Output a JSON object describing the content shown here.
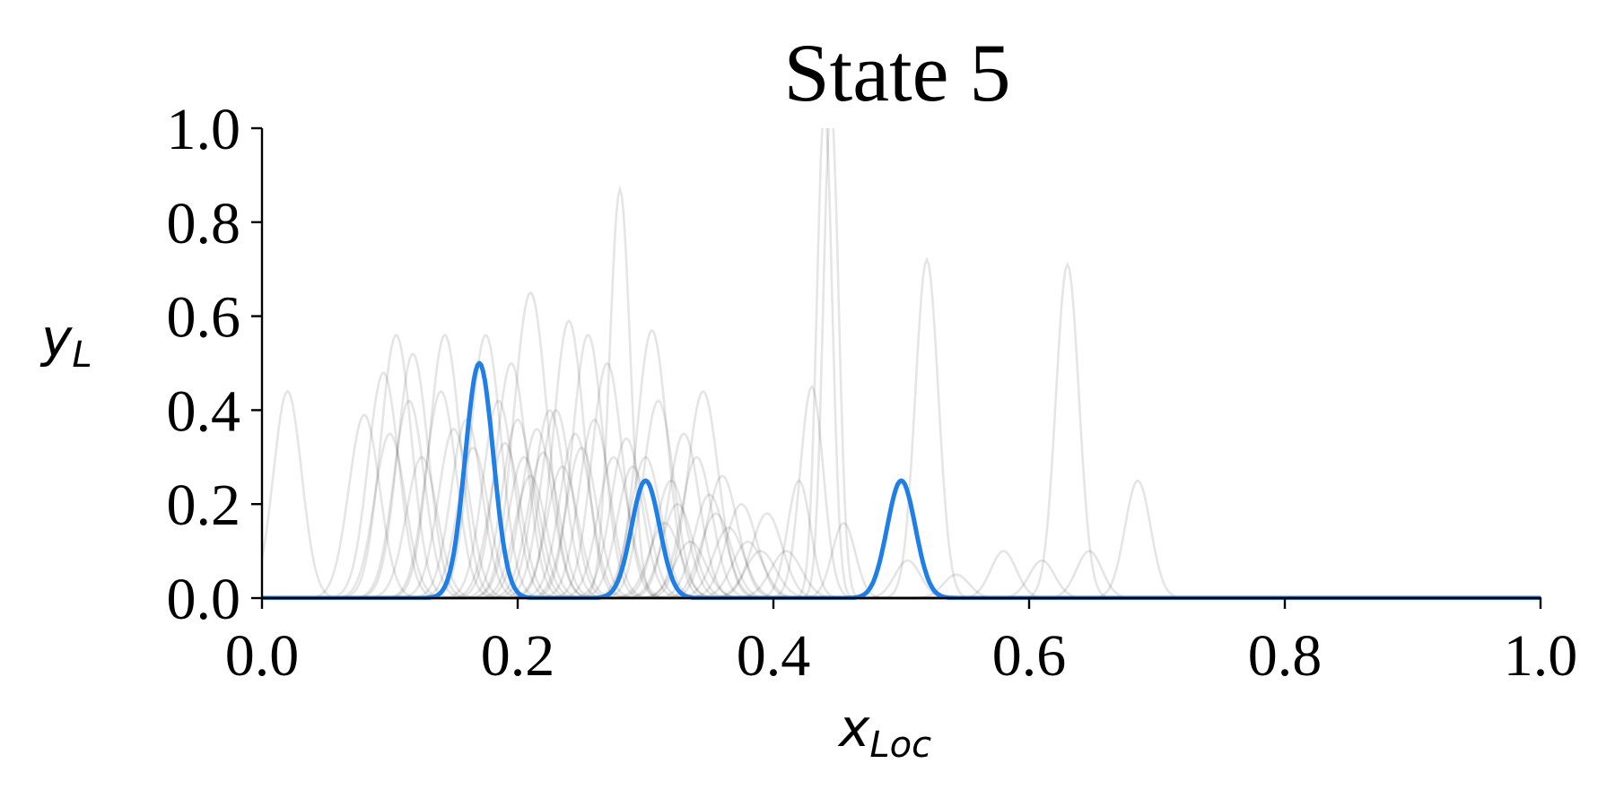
{
  "chart_data": {
    "type": "line",
    "title": "State 5",
    "xlabel": {
      "main": "x",
      "sub": "Loc"
    },
    "ylabel": {
      "main": "y",
      "sub": "L"
    },
    "xlim": [
      0,
      1
    ],
    "ylim": [
      0,
      1
    ],
    "x_ticks": [
      "0.0",
      "0.2",
      "0.4",
      "0.6",
      "0.8",
      "1.0"
    ],
    "y_ticks": [
      "0.0",
      "0.2",
      "0.4",
      "0.6",
      "0.8",
      "1.0"
    ],
    "grid": false,
    "legend": "none",
    "colors": {
      "highlight": "#1f7fe6",
      "background_curves": "#000000",
      "axes": "#000000"
    },
    "highlight_series": {
      "peaks": [
        {
          "mu": 0.17,
          "height": 0.5,
          "sigma": 0.011
        },
        {
          "mu": 0.3,
          "height": 0.25,
          "sigma": 0.011
        },
        {
          "mu": 0.5,
          "height": 0.25,
          "sigma": 0.011
        }
      ]
    },
    "background_series": [
      {
        "peaks": [
          {
            "mu": 0.02,
            "height": 0.44,
            "sigma": 0.011
          },
          {
            "mu": 0.28,
            "height": 0.87,
            "sigma": 0.008
          }
        ]
      },
      {
        "peaks": [
          {
            "mu": 0.105,
            "height": 0.56,
            "sigma": 0.012
          },
          {
            "mu": 0.44,
            "height": 1.05,
            "sigma": 0.006
          }
        ]
      },
      {
        "peaks": [
          {
            "mu": 0.118,
            "height": 0.52,
            "sigma": 0.012
          },
          {
            "mu": 0.445,
            "height": 1.05,
            "sigma": 0.006
          }
        ]
      },
      {
        "peaks": [
          {
            "mu": 0.143,
            "height": 0.56,
            "sigma": 0.012
          },
          {
            "mu": 0.52,
            "height": 0.72,
            "sigma": 0.009
          }
        ]
      },
      {
        "peaks": [
          {
            "mu": 0.21,
            "height": 0.65,
            "sigma": 0.013
          },
          {
            "mu": 0.63,
            "height": 0.71,
            "sigma": 0.009
          }
        ]
      },
      {
        "peaks": [
          {
            "mu": 0.24,
            "height": 0.59,
            "sigma": 0.012
          },
          {
            "mu": 0.685,
            "height": 0.25,
            "sigma": 0.01
          }
        ]
      },
      {
        "peaks": [
          {
            "mu": 0.305,
            "height": 0.57,
            "sigma": 0.012
          },
          {
            "mu": 0.43,
            "height": 0.45,
            "sigma": 0.009
          }
        ]
      },
      {
        "peaks": [
          {
            "mu": 0.08,
            "height": 0.39,
            "sigma": 0.012
          },
          {
            "mu": 0.42,
            "height": 0.25,
            "sigma": 0.009
          }
        ]
      },
      {
        "peaks": [
          {
            "mu": 0.095,
            "height": 0.48,
            "sigma": 0.012
          },
          {
            "mu": 0.58,
            "height": 0.1,
            "sigma": 0.01
          }
        ]
      },
      {
        "peaks": [
          {
            "mu": 0.175,
            "height": 0.56,
            "sigma": 0.012
          },
          {
            "mu": 0.647,
            "height": 0.1,
            "sigma": 0.01
          }
        ]
      },
      {
        "peaks": [
          {
            "mu": 0.195,
            "height": 0.5,
            "sigma": 0.012
          },
          {
            "mu": 0.61,
            "height": 0.08,
            "sigma": 0.01
          }
        ]
      },
      {
        "peaks": [
          {
            "mu": 0.255,
            "height": 0.56,
            "sigma": 0.012
          },
          {
            "mu": 0.455,
            "height": 0.16,
            "sigma": 0.009
          }
        ]
      },
      {
        "peaks": [
          {
            "mu": 0.27,
            "height": 0.5,
            "sigma": 0.012
          },
          {
            "mu": 0.543,
            "height": 0.05,
            "sigma": 0.01
          }
        ]
      },
      {
        "peaks": [
          {
            "mu": 0.345,
            "height": 0.44,
            "sigma": 0.012
          },
          {
            "mu": 0.505,
            "height": 0.08,
            "sigma": 0.01
          }
        ]
      },
      {
        "peaks": [
          {
            "mu": 0.14,
            "height": 0.44,
            "sigma": 0.012
          },
          {
            "mu": 0.36,
            "height": 0.26,
            "sigma": 0.012
          }
        ]
      },
      {
        "peaks": [
          {
            "mu": 0.1,
            "height": 0.35,
            "sigma": 0.012
          },
          {
            "mu": 0.225,
            "height": 0.4,
            "sigma": 0.012
          }
        ]
      },
      {
        "peaks": [
          {
            "mu": 0.115,
            "height": 0.42,
            "sigma": 0.012
          },
          {
            "mu": 0.3,
            "height": 0.3,
            "sigma": 0.012
          }
        ]
      },
      {
        "peaks": [
          {
            "mu": 0.16,
            "height": 0.38,
            "sigma": 0.012
          },
          {
            "mu": 0.395,
            "height": 0.18,
            "sigma": 0.012
          }
        ]
      },
      {
        "peaks": [
          {
            "mu": 0.185,
            "height": 0.42,
            "sigma": 0.012
          },
          {
            "mu": 0.33,
            "height": 0.35,
            "sigma": 0.012
          }
        ]
      },
      {
        "peaks": [
          {
            "mu": 0.2,
            "height": 0.38,
            "sigma": 0.012
          },
          {
            "mu": 0.375,
            "height": 0.2,
            "sigma": 0.012
          }
        ]
      },
      {
        "peaks": [
          {
            "mu": 0.215,
            "height": 0.36,
            "sigma": 0.012
          },
          {
            "mu": 0.31,
            "height": 0.42,
            "sigma": 0.012
          }
        ]
      },
      {
        "peaks": [
          {
            "mu": 0.23,
            "height": 0.4,
            "sigma": 0.012
          },
          {
            "mu": 0.35,
            "height": 0.22,
            "sigma": 0.012
          }
        ]
      },
      {
        "peaks": [
          {
            "mu": 0.245,
            "height": 0.35,
            "sigma": 0.012
          },
          {
            "mu": 0.34,
            "height": 0.3,
            "sigma": 0.012
          }
        ]
      },
      {
        "peaks": [
          {
            "mu": 0.26,
            "height": 0.38,
            "sigma": 0.012
          },
          {
            "mu": 0.365,
            "height": 0.15,
            "sigma": 0.012
          }
        ]
      },
      {
        "peaks": [
          {
            "mu": 0.205,
            "height": 0.3,
            "sigma": 0.012
          },
          {
            "mu": 0.32,
            "height": 0.25,
            "sigma": 0.012
          }
        ]
      },
      {
        "peaks": [
          {
            "mu": 0.125,
            "height": 0.3,
            "sigma": 0.012
          },
          {
            "mu": 0.285,
            "height": 0.34,
            "sigma": 0.012
          }
        ]
      },
      {
        "peaks": [
          {
            "mu": 0.19,
            "height": 0.33,
            "sigma": 0.012
          },
          {
            "mu": 0.29,
            "height": 0.28,
            "sigma": 0.012
          }
        ]
      },
      {
        "peaks": [
          {
            "mu": 0.235,
            "height": 0.28,
            "sigma": 0.012
          },
          {
            "mu": 0.38,
            "height": 0.12,
            "sigma": 0.012
          }
        ]
      },
      {
        "peaks": [
          {
            "mu": 0.165,
            "height": 0.32,
            "sigma": 0.012
          },
          {
            "mu": 0.325,
            "height": 0.2,
            "sigma": 0.012
          }
        ]
      },
      {
        "peaks": [
          {
            "mu": 0.22,
            "height": 0.31,
            "sigma": 0.012
          },
          {
            "mu": 0.41,
            "height": 0.1,
            "sigma": 0.012
          }
        ]
      },
      {
        "peaks": [
          {
            "mu": 0.275,
            "height": 0.3,
            "sigma": 0.012
          },
          {
            "mu": 0.355,
            "height": 0.18,
            "sigma": 0.012
          }
        ]
      },
      {
        "peaks": [
          {
            "mu": 0.25,
            "height": 0.32,
            "sigma": 0.012
          },
          {
            "mu": 0.39,
            "height": 0.1,
            "sigma": 0.012
          }
        ]
      },
      {
        "peaks": [
          {
            "mu": 0.15,
            "height": 0.36,
            "sigma": 0.012
          },
          {
            "mu": 0.315,
            "height": 0.16,
            "sigma": 0.012
          }
        ]
      },
      {
        "peaks": [
          {
            "mu": 0.21,
            "height": 0.26,
            "sigma": 0.012
          },
          {
            "mu": 0.335,
            "height": 0.12,
            "sigma": 0.012
          }
        ]
      }
    ]
  }
}
